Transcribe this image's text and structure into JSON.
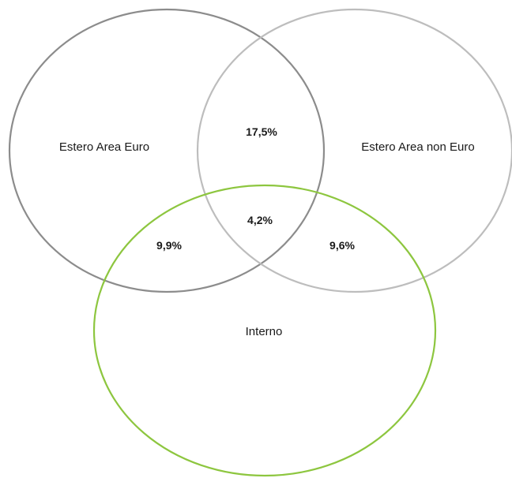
{
  "diagram": {
    "type": "venn",
    "sets": [
      {
        "label": "Estero Area Euro",
        "color": "#8c8c8c"
      },
      {
        "label": "Estero Area non Euro",
        "color": "#bdbdbd"
      },
      {
        "label": "Interno",
        "color": "#8dc63f"
      }
    ],
    "intersections": {
      "euro_non_euro": "17,5%",
      "euro_interno": "9,9%",
      "non_euro_interno": "9,6%",
      "all_three": "4,2%"
    }
  }
}
